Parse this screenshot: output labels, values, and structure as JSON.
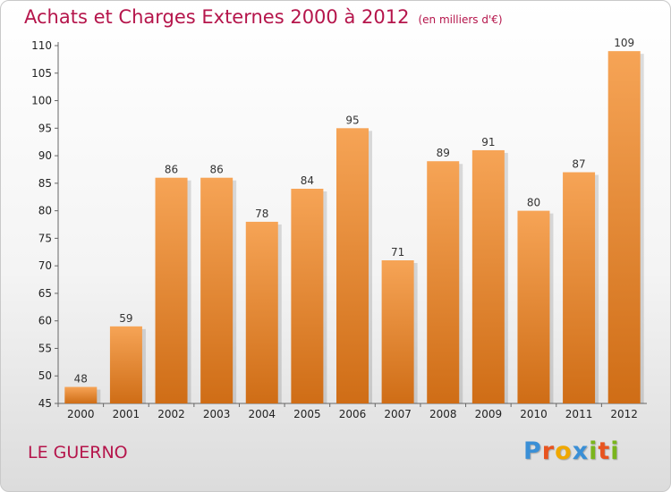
{
  "chart_data": {
    "type": "bar",
    "title": "Achats et Charges Externes 2000 à 2012",
    "subtitle": "(en milliers d'€)",
    "xlabel": "",
    "ylabel": "",
    "categories": [
      "2000",
      "2001",
      "2002",
      "2003",
      "2004",
      "2005",
      "2006",
      "2007",
      "2008",
      "2009",
      "2010",
      "2011",
      "2012"
    ],
    "values": [
      48,
      59,
      86,
      86,
      78,
      84,
      95,
      71,
      89,
      91,
      80,
      87,
      109
    ],
    "ylim": [
      45,
      110
    ],
    "yticks": [
      45,
      50,
      55,
      60,
      65,
      70,
      75,
      80,
      85,
      90,
      95,
      100,
      105,
      110
    ],
    "grid": false,
    "legend": "none",
    "colors": {
      "bar_top": "#f6a456",
      "bar_bottom": "#cf6d16",
      "title": "#b5154b"
    }
  },
  "footer": {
    "commune": "LE GUERNO",
    "brand_letters": [
      {
        "ch": "P",
        "color": "#3a8fd6"
      },
      {
        "ch": "r",
        "color": "#e8541f"
      },
      {
        "ch": "o",
        "color": "#f0a800"
      },
      {
        "ch": "x",
        "color": "#3a8fd6"
      },
      {
        "ch": "i",
        "color": "#7ab51d"
      },
      {
        "ch": "t",
        "color": "#e8541f"
      },
      {
        "ch": "i",
        "color": "#7ab51d"
      }
    ]
  }
}
